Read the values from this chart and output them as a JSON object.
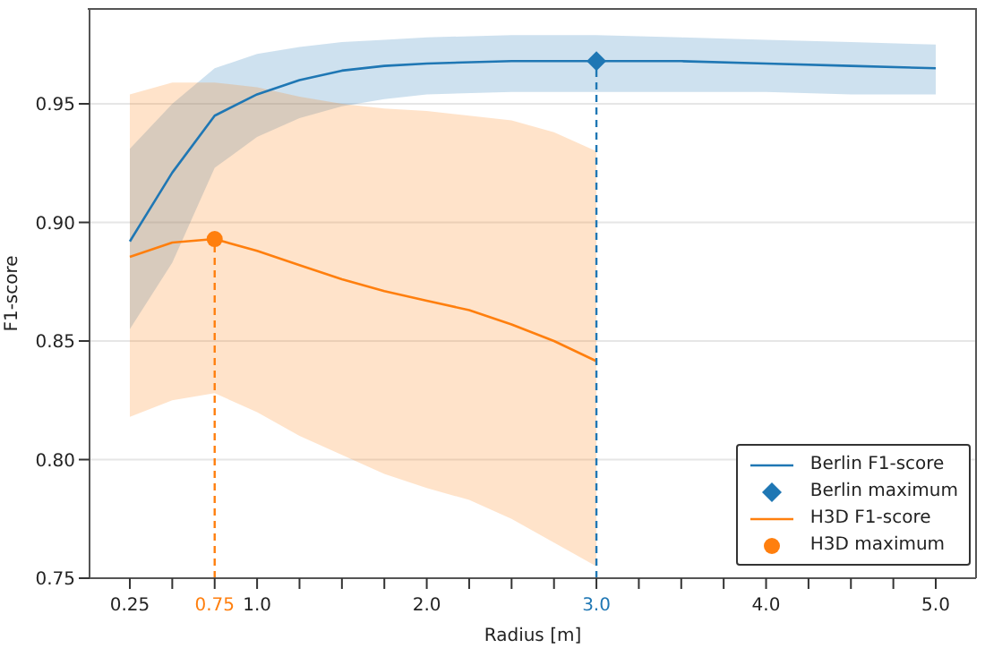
{
  "chart_data": {
    "type": "line",
    "xlabel": "Radius [m]",
    "ylabel": "F1-score",
    "xlim": [
      0.0125,
      5.2375
    ],
    "ylim": [
      0.75,
      0.99
    ],
    "xticks": [
      {
        "value": 0.25,
        "label": "0.25"
      },
      {
        "value": 0.5,
        "label": null
      },
      {
        "value": 0.75,
        "label": "0.75"
      },
      {
        "value": 1.0,
        "label": "1.0"
      },
      {
        "value": 1.25,
        "label": null
      },
      {
        "value": 1.5,
        "label": null
      },
      {
        "value": 1.75,
        "label": null
      },
      {
        "value": 2.0,
        "label": "2.0"
      },
      {
        "value": 2.25,
        "label": null
      },
      {
        "value": 2.5,
        "label": null
      },
      {
        "value": 2.75,
        "label": null
      },
      {
        "value": 3.0,
        "label": "3.0"
      },
      {
        "value": 3.25,
        "label": null
      },
      {
        "value": 3.5,
        "label": null
      },
      {
        "value": 3.75,
        "label": null
      },
      {
        "value": 4.0,
        "label": "4.0"
      },
      {
        "value": 4.25,
        "label": null
      },
      {
        "value": 4.5,
        "label": null
      },
      {
        "value": 4.75,
        "label": null
      },
      {
        "value": 5.0,
        "label": "5.0"
      }
    ],
    "yticks": [
      {
        "value": 0.75,
        "label": "0.75"
      },
      {
        "value": 0.8,
        "label": "0.80"
      },
      {
        "value": 0.85,
        "label": "0.85"
      },
      {
        "value": 0.9,
        "label": "0.90"
      },
      {
        "value": 0.95,
        "label": "0.95"
      }
    ],
    "grid": "y",
    "legend": "bottom right",
    "series": [
      {
        "name": "Berlin F1-score",
        "color": "#1f77b4",
        "x": [
          0.25,
          0.5,
          0.75,
          1.0,
          1.25,
          1.5,
          1.75,
          2.0,
          2.5,
          3.0,
          3.5,
          4.0,
          4.5,
          5.0
        ],
        "values": [
          0.892,
          0.921,
          0.945,
          0.954,
          0.96,
          0.964,
          0.966,
          0.967,
          0.968,
          0.968,
          0.968,
          0.967,
          0.966,
          0.965
        ],
        "lower": [
          0.855,
          0.883,
          0.923,
          0.936,
          0.944,
          0.949,
          0.952,
          0.954,
          0.955,
          0.955,
          0.955,
          0.955,
          0.954,
          0.954
        ],
        "upper": [
          0.931,
          0.95,
          0.965,
          0.971,
          0.974,
          0.976,
          0.977,
          0.978,
          0.979,
          0.979,
          0.978,
          0.977,
          0.976,
          0.975
        ]
      },
      {
        "name": "Berlin maximum",
        "type": "scatter",
        "marker": "diamond",
        "color": "#1f77b4",
        "x": [
          3.0
        ],
        "values": [
          0.968
        ]
      },
      {
        "name": "H3D F1-score",
        "color": "#ff7f0e",
        "x": [
          0.25,
          0.5,
          0.75,
          1.0,
          1.25,
          1.5,
          1.75,
          2.0,
          2.25,
          2.5,
          2.75,
          3.0
        ],
        "values": [
          0.8855,
          0.8915,
          0.893,
          0.888,
          0.882,
          0.876,
          0.871,
          0.867,
          0.863,
          0.857,
          0.85,
          0.8415
        ],
        "lower": [
          0.818,
          0.825,
          0.828,
          0.82,
          0.81,
          0.802,
          0.794,
          0.788,
          0.783,
          0.775,
          0.765,
          0.755
        ],
        "upper": [
          0.954,
          0.959,
          0.959,
          0.957,
          0.953,
          0.95,
          0.948,
          0.947,
          0.945,
          0.943,
          0.938,
          0.93
        ]
      },
      {
        "name": "H3D maximum",
        "type": "scatter",
        "marker": "circle",
        "color": "#ff7f0e",
        "x": [
          0.75
        ],
        "values": [
          0.893
        ]
      }
    ],
    "ref_lines": [
      {
        "axis": "x",
        "value": 0.75,
        "color": "#ff7f0e",
        "line_style": "dashed"
      },
      {
        "axis": "x",
        "value": 3.0,
        "color": "#1f77b4",
        "line_style": "dashed"
      }
    ]
  }
}
